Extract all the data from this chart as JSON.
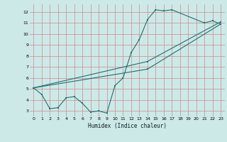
{
  "title": "",
  "xlabel": "Humidex (Indice chaleur)",
  "xlim": [
    -0.5,
    23.5
  ],
  "ylim": [
    2.5,
    12.7
  ],
  "yticks": [
    3,
    4,
    5,
    6,
    7,
    8,
    9,
    10,
    11,
    12
  ],
  "xticks": [
    0,
    1,
    2,
    3,
    4,
    5,
    6,
    7,
    8,
    9,
    10,
    11,
    12,
    13,
    14,
    15,
    16,
    17,
    18,
    19,
    20,
    21,
    22,
    23
  ],
  "bg_color": "#cce9e8",
  "grid_color": "#d08888",
  "line_color": "#207070",
  "line1_x": [
    0,
    1,
    2,
    3,
    4,
    5,
    6,
    7,
    8,
    9,
    10,
    11,
    12,
    13,
    14,
    15,
    16,
    17,
    21,
    22,
    23
  ],
  "line1_y": [
    5.1,
    4.5,
    3.2,
    3.3,
    4.2,
    4.3,
    3.7,
    2.9,
    3.0,
    2.8,
    5.3,
    6.0,
    8.3,
    9.5,
    11.3,
    12.2,
    12.1,
    12.2,
    11.0,
    11.2,
    10.9
  ],
  "line2_x": [
    0,
    14,
    23
  ],
  "line2_y": [
    5.1,
    7.5,
    11.1
  ],
  "line3_x": [
    0,
    14,
    23
  ],
  "line3_y": [
    5.1,
    6.8,
    10.9
  ]
}
